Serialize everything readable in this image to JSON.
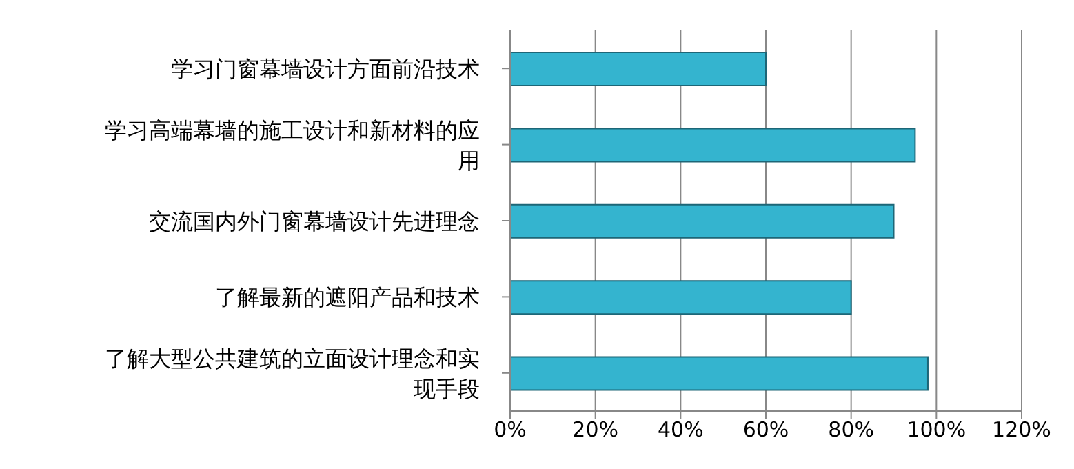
{
  "chart_data": {
    "type": "bar",
    "orientation": "horizontal",
    "categories": [
      "学习门窗幕墙设计方面前沿技术",
      "学习高端幕墙的施工设计和新材料的应用",
      "交流国内外门窗幕墙设计先进理念",
      "了解最新的遮阳产品和技术",
      "了解大型公共建筑的立面设计理念和实现手段"
    ],
    "values": [
      60,
      95,
      90,
      80,
      98
    ],
    "color": "#34b4cf",
    "xlim": [
      0,
      120
    ],
    "xticks": [
      {
        "value": 0,
        "label": "0%"
      },
      {
        "value": 20,
        "label": "20%"
      },
      {
        "value": 40,
        "label": "40%"
      },
      {
        "value": 60,
        "label": "60%"
      },
      {
        "value": 80,
        "label": "80%"
      },
      {
        "value": 100,
        "label": "100%"
      },
      {
        "value": 120,
        "label": "120%"
      }
    ],
    "grid": "x"
  }
}
